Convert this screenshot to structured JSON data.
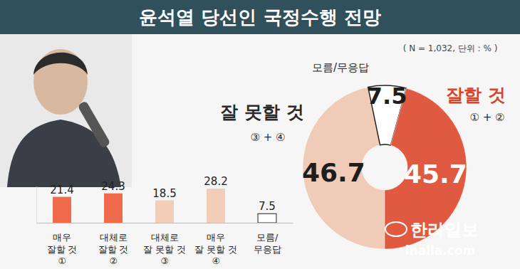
{
  "title": "윤석열 당선인 국정수행 전망",
  "subtitle": "( N = 1,032, 단위 : % )",
  "source": {
    "name": "한라일보",
    "url": "ihalla.com"
  },
  "chart_data": [
    {
      "type": "bar",
      "categories": [
        "매우\n잘할 것\n①",
        "대체로\n잘할 것\n②",
        "대체로\n잘 못할 것\n③",
        "매우\n잘 못할 것\n④",
        "모름/\n무응답"
      ],
      "values": [
        21.4,
        24.3,
        18.5,
        28.2,
        7.5
      ],
      "colors": [
        "#ee6a4b",
        "#ee6a4b",
        "#f2cdb8",
        "#f2cdb8",
        "#ffffff"
      ],
      "ylim": [
        0,
        30
      ],
      "yticks": [],
      "grid": false,
      "data_labels": true,
      "tick_labels": "x"
    },
    {
      "type": "donut",
      "categories": [
        "잘 못할 것",
        "모름/무응답",
        "잘할 것"
      ],
      "sublabels": [
        "③ + ④",
        null,
        "① + ②"
      ],
      "values": [
        46.7,
        7.5,
        45.7
      ],
      "colors": [
        "#efcbb8",
        "#ffffff",
        "#e05a41"
      ],
      "data_labels": true
    }
  ]
}
